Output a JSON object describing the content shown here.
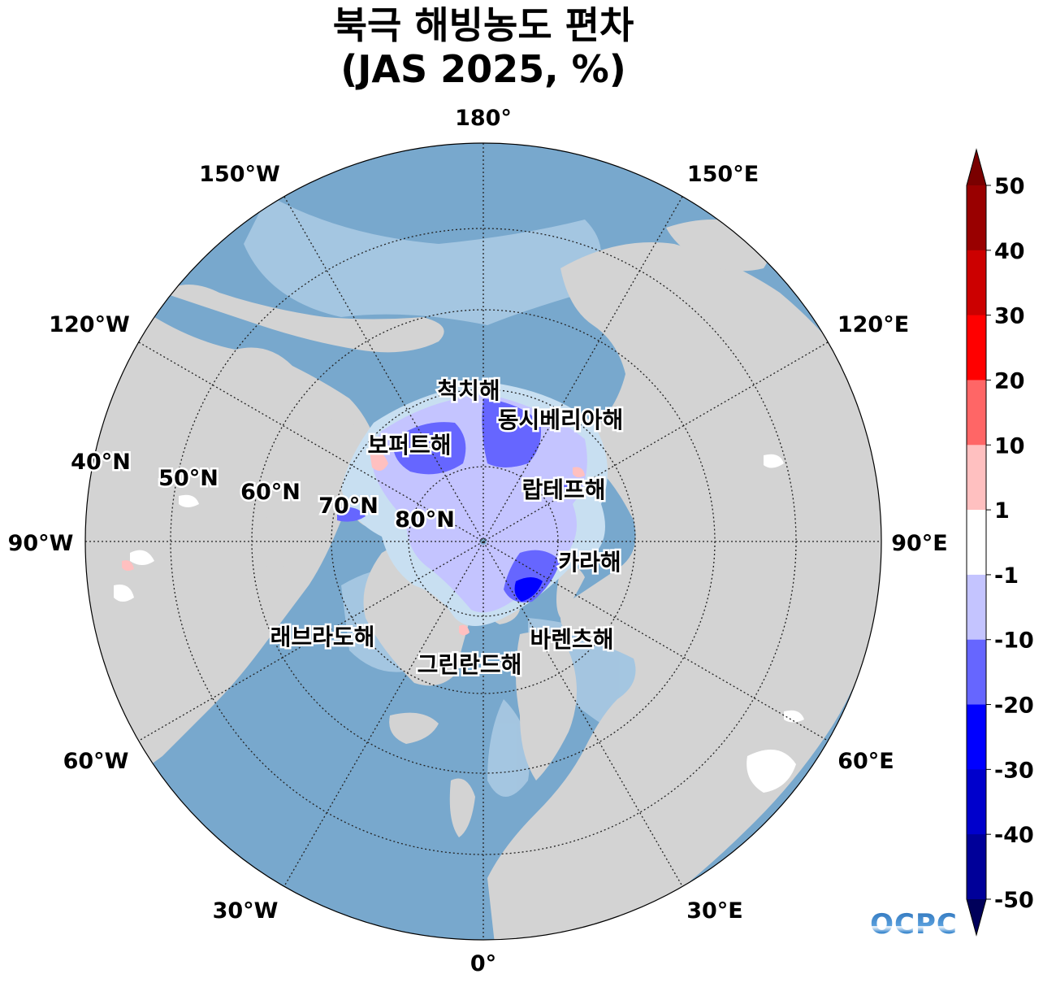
{
  "title": {
    "line1": "북극 해빙농도 편차",
    "line2": "(JAS 2025, %)"
  },
  "map": {
    "projection": "north-polar-stereographic",
    "boundary_lat": 40,
    "ocean_color": "#78a8cd",
    "land_color": "#d3d3d3",
    "longitude_labels": [
      "180°",
      "150°E",
      "120°E",
      "90°E",
      "60°E",
      "30°E",
      "0°",
      "30°W",
      "60°W",
      "90°W",
      "120°W",
      "150°W"
    ],
    "latitude_labels": [
      "40°N",
      "50°N",
      "60°N",
      "70°N",
      "80°N"
    ],
    "sea_labels": [
      "척치해",
      "동시베리아해",
      "보퍼트해",
      "랍테프해",
      "카라해",
      "래브라도해",
      "그린란드해",
      "바렌츠해"
    ]
  },
  "colorbar": {
    "ticks": [
      "50",
      "40",
      "30",
      "20",
      "10",
      "1",
      "-1",
      "-10",
      "-20",
      "-30",
      "-40",
      "-50"
    ],
    "colors": [
      "#990000",
      "#cc0000",
      "#ff0000",
      "#ff6666",
      "#ffc0c0",
      "#ffffff",
      "#c4c4ff",
      "#6666ff",
      "#0000ff",
      "#0000cc",
      "#000099"
    ],
    "over_color": "#7a0000",
    "under_color": "#00005a",
    "extend": "both"
  },
  "logo": {
    "text": "OCPC"
  }
}
